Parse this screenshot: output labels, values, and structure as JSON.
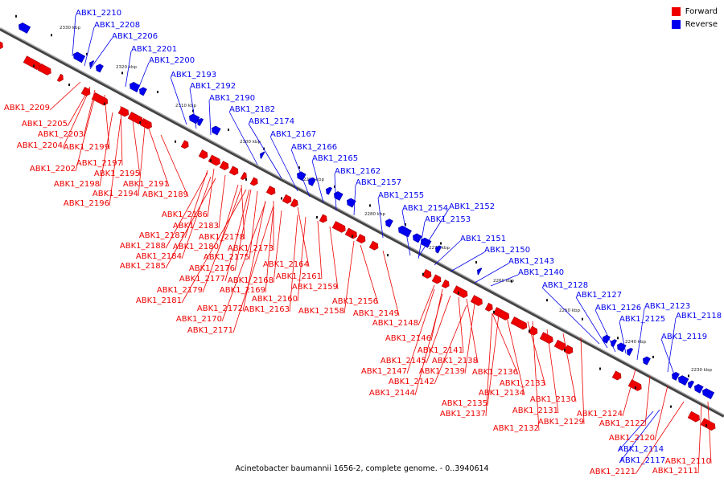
{
  "legend": [
    {
      "label": "Forward",
      "color": "#ee0000"
    },
    {
      "label": "Reverse",
      "color": "#0000ee"
    }
  ],
  "caption": "Acinetobacter baumannii 1656-2, complete genome. - 0..3940614",
  "ticks": [
    "2330 kbp",
    "2320 kbp",
    "2310 kbp",
    "2300 kbp",
    "2290 kbp",
    "2280 kbp",
    "2270 kbp",
    "2260 kbp",
    "2250 kbp",
    "2240 kbp",
    "2230 kbp"
  ],
  "reverse_labels": [
    "ABK1_2210",
    "ABK1_2208",
    "ABK1_2206",
    "ABK1_2201",
    "ABK1_2200",
    "ABK1_2193",
    "ABK1_2192",
    "ABK1_2190",
    "ABK1_2182",
    "ABK1_2174",
    "ABK1_2167",
    "ABK1_2166",
    "ABK1_2165",
    "ABK1_2162",
    "ABK1_2157",
    "ABK1_2155",
    "ABK1_2154",
    "ABK1_2152",
    "ABK1_2153",
    "ABK1_2151",
    "ABK1_2150",
    "ABK1_2143",
    "ABK1_2140",
    "ABK1_2128",
    "ABK1_2127",
    "ABK1_2126",
    "ABK1_2123",
    "ABK1_2125",
    "ABK1_2118",
    "ABK1_2119",
    "ABK1_2114",
    "ABK1_2117"
  ],
  "forward_labels": [
    "ABK1_2209",
    "ABK1_2205",
    "ABK1_2203",
    "ABK1_2204",
    "ABK1_2199",
    "ABK1_2197",
    "ABK1_2202",
    "ABK1_2195",
    "ABK1_2198",
    "ABK1_2191",
    "ABK1_2194",
    "ABK1_2189",
    "ABK1_2196",
    "ABK1_2186",
    "ABK1_2183",
    "ABK1_2187",
    "ABK1_2178",
    "ABK1_2188",
    "ABK1_2180",
    "ABK1_2184",
    "ABK1_2175",
    "ABK1_2173",
    "ABK1_2185",
    "ABK1_2176",
    "ABK1_2164",
    "ABK1_2177",
    "ABK1_2168",
    "ABK1_2161",
    "ABK1_2179",
    "ABK1_2169",
    "ABK1_2159",
    "ABK1_2181",
    "ABK1_2160",
    "ABK1_2156",
    "ABK1_2172",
    "ABK1_2163",
    "ABK1_2158",
    "ABK1_2149",
    "ABK1_2170",
    "ABK1_2148",
    "ABK1_2171",
    "ABK1_2146",
    "ABK1_2141",
    "ABK1_2145",
    "ABK1_2138",
    "ABK1_2147",
    "ABK1_2139",
    "ABK1_2136",
    "ABK1_2142",
    "ABK1_2133",
    "ABK1_2144",
    "ABK1_2134",
    "ABK1_2130",
    "ABK1_2135",
    "ABK1_2137",
    "ABK1_2131",
    "ABK1_2129",
    "ABK1_2132",
    "ABK1_2124",
    "ABK1_2122",
    "ABK1_2120",
    "ABK1_2121",
    "ABK1_2110",
    "ABK1_2111"
  ]
}
